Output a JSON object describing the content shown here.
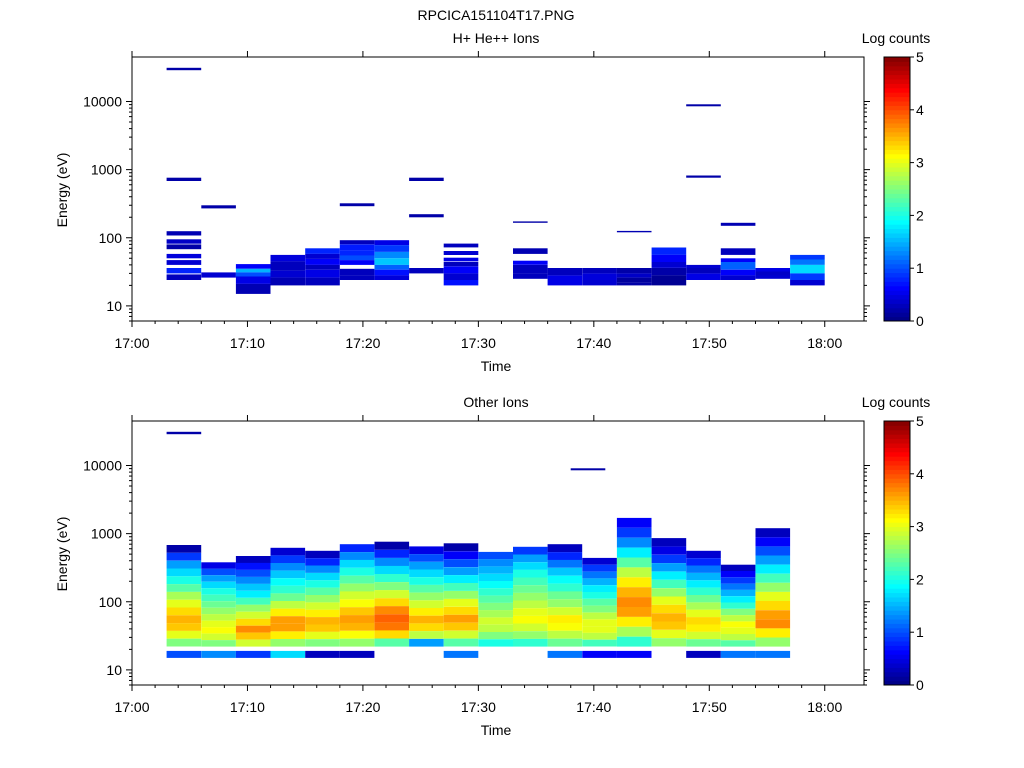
{
  "figure": {
    "title": "RPCICA151104T17.PNG",
    "background": "#ffffff"
  },
  "chart_data": [
    {
      "type": "heatmap",
      "title": "H+ He++ Ions",
      "xlabel": "Time",
      "ylabel": "Energy (eV)",
      "colorbar_label": "Log counts",
      "y_scale": "log",
      "ylim": [
        6,
        45000
      ],
      "x_range": [
        "17:00",
        "18:00"
      ],
      "x_ticks": [
        "17:00",
        "17:10",
        "17:20",
        "17:30",
        "17:40",
        "17:50",
        "18:00"
      ],
      "y_ticks": [
        "10",
        "100",
        "1000",
        "10000"
      ],
      "colorbar_ticks": [
        "0",
        "1",
        "2",
        "3",
        "4",
        "5"
      ],
      "colorbar_range": [
        0,
        5
      ],
      "colormap": "jet",
      "time_bins": [
        {
          "t0": "17:03",
          "t1": "17:06",
          "cells": [
            [
              28800,
              31200,
              0.2
            ],
            [
              680,
              760,
              0.2
            ],
            [
              108,
              125,
              0.25
            ],
            [
              82,
              95,
              0.35
            ],
            [
              68,
              80,
              0.2
            ],
            [
              50,
              58,
              0.45
            ],
            [
              40,
              47,
              0.4
            ],
            [
              30,
              36,
              0.8
            ],
            [
              24,
              29,
              0.3
            ]
          ]
        },
        {
          "t0": "17:06",
          "t1": "17:09",
          "cells": [
            [
              270,
              300,
              0.2
            ],
            [
              26,
              31,
              0.4
            ]
          ]
        },
        {
          "t0": "17:09",
          "t1": "17:12",
          "cells": [
            [
              35,
              41,
              0.6
            ],
            [
              31,
              35,
              1.5
            ],
            [
              27,
              31,
              1.0
            ],
            [
              21,
              27,
              0.5
            ],
            [
              15,
              21,
              0.25
            ]
          ]
        },
        {
          "t0": "17:12",
          "t1": "17:15",
          "cells": [
            [
              45,
              56,
              0.45
            ],
            [
              33,
              45,
              0.3
            ],
            [
              26,
              33,
              0.4
            ],
            [
              20,
              26,
              0.25
            ]
          ]
        },
        {
          "t0": "17:15",
          "t1": "17:18",
          "cells": [
            [
              58,
              70,
              0.8
            ],
            [
              49,
              58,
              0.4
            ],
            [
              40,
              49,
              0.6
            ],
            [
              34,
              40,
              0.3
            ],
            [
              26,
              34,
              0.5
            ],
            [
              20,
              26,
              0.3
            ]
          ]
        },
        {
          "t0": "17:18",
          "t1": "17:21",
          "cells": [
            [
              290,
              320,
              0.2
            ],
            [
              80,
              92,
              0.3
            ],
            [
              66,
              80,
              0.75
            ],
            [
              55,
              66,
              0.8
            ],
            [
              47,
              55,
              1.0
            ],
            [
              40,
              47,
              0.6
            ],
            [
              28,
              35,
              0.3
            ],
            [
              24,
              28,
              0.3
            ]
          ]
        },
        {
          "t0": "17:21",
          "t1": "17:24",
          "cells": [
            [
              78,
              92,
              0.5
            ],
            [
              62,
              78,
              0.9
            ],
            [
              50,
              62,
              1.3
            ],
            [
              40,
              50,
              1.6
            ],
            [
              34,
              40,
              1.1
            ],
            [
              28,
              34,
              0.7
            ],
            [
              24,
              28,
              0.45
            ]
          ]
        },
        {
          "t0": "17:24",
          "t1": "17:27",
          "cells": [
            [
              680,
              760,
              0.2
            ],
            [
              200,
              222,
              0.2
            ],
            [
              30,
              36,
              0.3
            ]
          ]
        },
        {
          "t0": "17:27",
          "t1": "17:30",
          "cells": [
            [
              72,
              82,
              0.3
            ],
            [
              56,
              64,
              0.4
            ],
            [
              45,
              51,
              0.5
            ],
            [
              38,
              44,
              0.3
            ],
            [
              30,
              38,
              0.6
            ],
            [
              24,
              30,
              0.4
            ],
            [
              20,
              24,
              0.7
            ]
          ]
        },
        {
          "t0": "17:30",
          "t1": "17:33",
          "cells": []
        },
        {
          "t0": "17:33",
          "t1": "17:36",
          "cells": [
            [
              166,
              174,
              0.2
            ],
            [
              58,
              70,
              0.25
            ],
            [
              40,
              46,
              0.6
            ],
            [
              30,
              40,
              0.3
            ],
            [
              25,
              30,
              0.3
            ]
          ]
        },
        {
          "t0": "17:36",
          "t1": "17:39",
          "cells": [
            [
              28,
              36,
              0.3
            ],
            [
              20,
              28,
              0.5
            ]
          ]
        },
        {
          "t0": "17:39",
          "t1": "17:42",
          "cells": [
            [
              30,
              36,
              0.3
            ],
            [
              24,
              30,
              0.45
            ],
            [
              20,
              24,
              0.4
            ]
          ]
        },
        {
          "t0": "17:42",
          "t1": "17:45",
          "cells": [
            [
              120,
              126,
              0.25
            ],
            [
              30,
              36,
              0.2
            ],
            [
              26,
              30,
              0.35
            ],
            [
              22,
              26,
              0.15
            ],
            [
              20,
              22,
              0.2
            ]
          ]
        },
        {
          "t0": "17:45",
          "t1": "17:48",
          "cells": [
            [
              56,
              72,
              0.8
            ],
            [
              44,
              56,
              0.6
            ],
            [
              36,
              44,
              0.4
            ],
            [
              28,
              36,
              0.2
            ],
            [
              20,
              28,
              0.1
            ]
          ]
        },
        {
          "t0": "17:48",
          "t1": "17:51",
          "cells": [
            [
              8500,
              9100,
              0.2
            ],
            [
              760,
              820,
              0.2
            ],
            [
              36,
              40,
              0.4
            ],
            [
              30,
              36,
              0.3
            ],
            [
              24,
              30,
              0.5
            ]
          ]
        },
        {
          "t0": "17:51",
          "t1": "17:54",
          "cells": [
            [
              150,
              166,
              0.25
            ],
            [
              56,
              70,
              0.3
            ],
            [
              44,
              50,
              0.6
            ],
            [
              34,
              44,
              1.1
            ],
            [
              28,
              34,
              0.6
            ],
            [
              24,
              28,
              0.4
            ]
          ]
        },
        {
          "t0": "17:54",
          "t1": "17:57",
          "cells": [
            [
              32,
              36,
              0.5
            ],
            [
              28,
              32,
              0.35
            ],
            [
              25,
              28,
              0.4
            ]
          ]
        },
        {
          "t0": "17:57",
          "t1": "18:00",
          "cells": [
            [
              48,
              56,
              0.9
            ],
            [
              40,
              48,
              1.2
            ],
            [
              30,
              40,
              1.7
            ],
            [
              24,
              30,
              0.9
            ],
            [
              20,
              24,
              0.4
            ]
          ]
        }
      ]
    },
    {
      "type": "heatmap",
      "title": "Other Ions",
      "xlabel": "Time",
      "ylabel": "Energy (eV)",
      "colorbar_label": "Log counts",
      "y_scale": "log",
      "ylim": [
        6,
        45000
      ],
      "x_range": [
        "17:00",
        "18:00"
      ],
      "x_ticks": [
        "17:00",
        "17:10",
        "17:20",
        "17:30",
        "17:40",
        "17:50",
        "18:00"
      ],
      "y_ticks": [
        "10",
        "100",
        "1000",
        "10000"
      ],
      "colorbar_ticks": [
        "0",
        "1",
        "2",
        "3",
        "4",
        "5"
      ],
      "colorbar_range": [
        0,
        5
      ],
      "colormap": "jet",
      "isolated_cells": [
        {
          "t0": "17:03",
          "t1": "17:06",
          "e0": 28800,
          "e1": 31200,
          "v": 0.2
        },
        {
          "t0": "17:38",
          "t1": "17:41",
          "e0": 8500,
          "e1": 9100,
          "v": 0.2
        }
      ],
      "time_bins": [
        {
          "t0": "17:03",
          "t1": "17:06",
          "top": 680,
          "profile": [
            0.2,
            0.9,
            1.4,
            1.7,
            2.0,
            2.3,
            2.7,
            3.0,
            3.3,
            3.5,
            3.4,
            3.0,
            2.5
          ],
          "bottom": 1.0
        },
        {
          "t0": "17:06",
          "t1": "17:09",
          "top": 380,
          "profile": [
            0.5,
            1.0,
            1.4,
            1.7,
            2.0,
            2.2,
            2.4,
            2.6,
            2.8,
            3.0,
            3.1,
            2.9,
            2.5
          ],
          "bottom": 1.3
        },
        {
          "t0": "17:09",
          "t1": "17:12",
          "top": 470,
          "profile": [
            0.3,
            0.7,
            1.0,
            1.3,
            1.6,
            1.8,
            2.2,
            2.6,
            2.9,
            3.3,
            3.7,
            3.4,
            2.9
          ],
          "bottom": 0.9
        },
        {
          "t0": "17:12",
          "t1": "17:15",
          "top": 620,
          "profile": [
            0.4,
            0.9,
            1.3,
            1.6,
            1.9,
            2.1,
            2.4,
            2.8,
            3.2,
            3.6,
            3.6,
            3.2,
            2.6
          ],
          "bottom": 1.7
        },
        {
          "t0": "17:15",
          "t1": "17:18",
          "top": 560,
          "profile": [
            0.3,
            0.8,
            1.3,
            1.7,
            2.0,
            2.3,
            2.6,
            2.9,
            3.2,
            3.5,
            3.4,
            3.0,
            2.5
          ],
          "bottom": 0.3
        },
        {
          "t0": "17:18",
          "t1": "17:21",
          "top": 700,
          "profile": [
            0.8,
            1.3,
            1.7,
            2.0,
            2.3,
            2.6,
            2.9,
            3.1,
            3.4,
            3.6,
            3.5,
            3.1,
            2.6
          ],
          "bottom": 0.3
        },
        {
          "t0": "17:21",
          "t1": "17:24",
          "top": 760,
          "profile": [
            0.2,
            0.8,
            1.3,
            1.7,
            2.1,
            2.5,
            2.9,
            3.3,
            3.7,
            3.9,
            3.8,
            3.3,
            2.3
          ],
          "bottom": null
        },
        {
          "t0": "17:24",
          "t1": "17:27",
          "top": 650,
          "profile": [
            0.5,
            1.0,
            1.4,
            1.7,
            2.0,
            2.3,
            2.6,
            2.9,
            3.2,
            3.5,
            3.3,
            2.8,
            1.4
          ],
          "bottom": null
        },
        {
          "t0": "17:27",
          "t1": "17:30",
          "top": 720,
          "profile": [
            0.2,
            0.6,
            1.0,
            1.4,
            1.8,
            2.2,
            2.6,
            3.0,
            3.3,
            3.6,
            3.4,
            2.9,
            2.3
          ],
          "bottom": 1.2
        },
        {
          "t0": "17:30",
          "t1": "17:33",
          "top": 540,
          "profile": [
            1.0,
            1.3,
            1.5,
            1.7,
            1.9,
            2.1,
            2.3,
            2.5,
            2.7,
            2.9,
            2.8,
            2.5,
            2.0
          ],
          "bottom": null
        },
        {
          "t0": "17:33",
          "t1": "17:36",
          "top": 640,
          "profile": [
            0.9,
            1.4,
            1.7,
            2.0,
            2.2,
            2.4,
            2.6,
            2.8,
            3.0,
            3.1,
            2.9,
            2.6,
            2.1
          ],
          "bottom": null
        },
        {
          "t0": "17:36",
          "t1": "17:39",
          "top": 700,
          "profile": [
            0.3,
            0.8,
            1.2,
            1.6,
            1.9,
            2.1,
            2.4,
            2.6,
            2.9,
            3.2,
            3.1,
            2.8,
            2.4
          ],
          "bottom": 1.2
        },
        {
          "t0": "17:39",
          "t1": "17:42",
          "top": 440,
          "profile": [
            0.4,
            0.9,
            1.2,
            1.5,
            1.8,
            2.0,
            2.3,
            2.5,
            2.8,
            3.0,
            3.0,
            2.8,
            2.2
          ],
          "bottom": 0.6
        },
        {
          "t0": "17:42",
          "t1": "17:45",
          "top": 1700,
          "profile": [
            0.6,
            0.9,
            1.3,
            1.8,
            2.3,
            2.8,
            3.2,
            3.5,
            3.7,
            3.6,
            3.2,
            2.7,
            2.1
          ],
          "bottom": 0.6
        },
        {
          "t0": "17:45",
          "t1": "17:48",
          "top": 860,
          "profile": [
            0.3,
            0.5,
            0.9,
            1.4,
            1.8,
            2.2,
            2.6,
            3.0,
            3.3,
            3.5,
            3.4,
            3.0,
            2.6
          ],
          "bottom": null
        },
        {
          "t0": "17:48",
          "t1": "17:51",
          "top": 560,
          "profile": [
            0.4,
            0.8,
            1.2,
            1.5,
            1.8,
            2.1,
            2.4,
            2.7,
            3.0,
            3.3,
            3.2,
            2.9,
            2.4
          ],
          "bottom": 0.3
        },
        {
          "t0": "17:51",
          "t1": "17:54",
          "top": 350,
          "profile": [
            0.3,
            0.6,
            0.9,
            1.2,
            1.5,
            1.8,
            2.1,
            2.5,
            2.8,
            3.1,
            3.0,
            2.8,
            2.3
          ],
          "bottom": 1.2
        },
        {
          "t0": "17:54",
          "t1": "17:57",
          "top": 1200,
          "profile": [
            0.3,
            0.6,
            1.0,
            1.4,
            1.8,
            2.2,
            2.6,
            3.0,
            3.3,
            3.6,
            3.7,
            3.2,
            2.6
          ],
          "bottom": 1.2
        }
      ]
    }
  ]
}
